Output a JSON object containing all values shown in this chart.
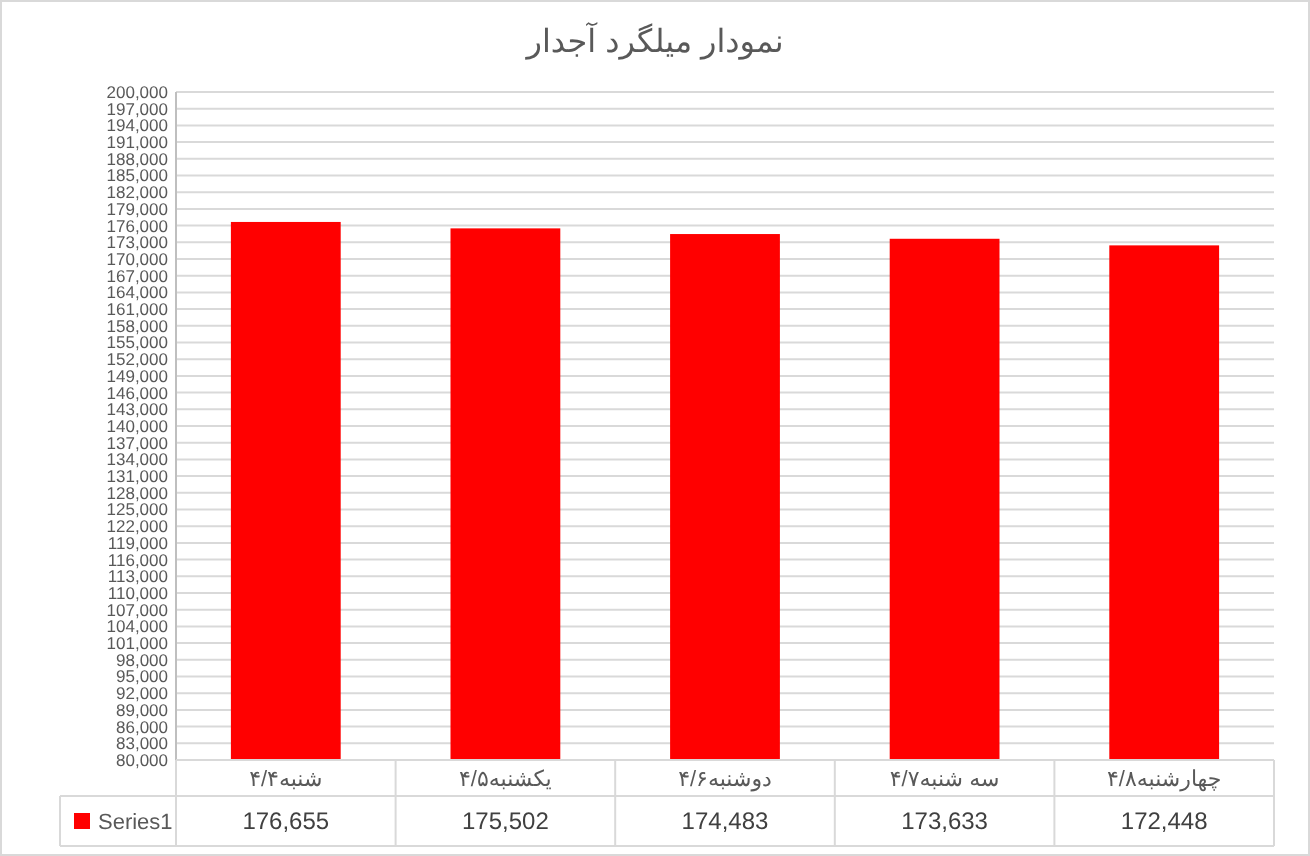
{
  "chart_data": {
    "type": "bar",
    "title": "نمودار میلگرد آجدار",
    "categories": [
      "شنبه۴/۴",
      "یکشنبه۴/۵",
      "دوشنبه۴/۶",
      "سه شنبه۴/۷",
      "چهارشنبه۴/۸"
    ],
    "series": [
      {
        "name": "Series1",
        "color": "#ff0000",
        "values": [
          176655,
          175502,
          174483,
          173633,
          172448
        ],
        "value_labels": [
          "176,655",
          "175,502",
          "174,483",
          "173,633",
          "172,448"
        ]
      }
    ],
    "ylim": [
      80000,
      200000
    ],
    "yticks": [
      {
        "value": 80000,
        "label": "80,000"
      },
      {
        "value": 83000,
        "label": "83,000"
      },
      {
        "value": 86000,
        "label": "86,000"
      },
      {
        "value": 89000,
        "label": "89,000"
      },
      {
        "value": 92000,
        "label": "92,000"
      },
      {
        "value": 95000,
        "label": "95,000"
      },
      {
        "value": 98000,
        "label": "98,000"
      },
      {
        "value": 101000,
        "label": "101,000"
      },
      {
        "value": 104000,
        "label": "104,000"
      },
      {
        "value": 107000,
        "label": "107,000"
      },
      {
        "value": 110000,
        "label": "110,000"
      },
      {
        "value": 113000,
        "label": "113,000"
      },
      {
        "value": 116000,
        "label": "116,000"
      },
      {
        "value": 119000,
        "label": "119,000"
      },
      {
        "value": 122000,
        "label": "122,000"
      },
      {
        "value": 125000,
        "label": "125,000"
      },
      {
        "value": 128000,
        "label": "128,000"
      },
      {
        "value": 131000,
        "label": "131,000"
      },
      {
        "value": 134000,
        "label": "134,000"
      },
      {
        "value": 137000,
        "label": "137,000"
      },
      {
        "value": 140000,
        "label": "140,000"
      },
      {
        "value": 143000,
        "label": "143,000"
      },
      {
        "value": 146000,
        "label": "146,000"
      },
      {
        "value": 149000,
        "label": "149,000"
      },
      {
        "value": 152000,
        "label": "152,000"
      },
      {
        "value": 155000,
        "label": "155,000"
      },
      {
        "value": 158000,
        "label": "158,000"
      },
      {
        "value": 161000,
        "label": "161,000"
      },
      {
        "value": 164000,
        "label": "164,000"
      },
      {
        "value": 167000,
        "label": "167,000"
      },
      {
        "value": 170000,
        "label": "170,000"
      },
      {
        "value": 173000,
        "label": "173,000"
      },
      {
        "value": 176000,
        "label": "176,000"
      },
      {
        "value": 179000,
        "label": "179,000"
      },
      {
        "value": 182000,
        "label": "182,000"
      },
      {
        "value": 185000,
        "label": "185,000"
      },
      {
        "value": 188000,
        "label": "188,000"
      },
      {
        "value": 191000,
        "label": "191,000"
      },
      {
        "value": 194000,
        "label": "194,000"
      },
      {
        "value": 197000,
        "label": "197,000"
      },
      {
        "value": 200000,
        "label": "200,000"
      }
    ],
    "grid": "y",
    "legend": "bottom"
  }
}
